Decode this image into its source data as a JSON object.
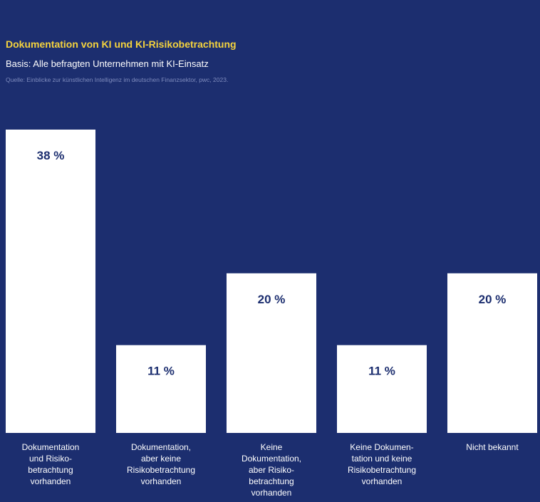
{
  "chart_data": {
    "type": "bar",
    "title": "Dokumentation von KI und KI-Risikobetrachtung",
    "subtitle": "Basis: Alle befragten Unternehmen mit KI-Einsatz",
    "source": "Quelle: Einblicke zur künstlichen Intelligenz im deutschen Finanzsektor, pwc, 2023.",
    "categories": [
      "Dokumentation\nund Risiko-\nbetrachtung\nvorhanden",
      "Dokumentation,\naber keine\nRisikobetrachtung\nvorhanden",
      "Keine\nDokumentation,\naber Risiko-\nbetrachtung\nvorhanden",
      "Keine Dokumen-\ntation und keine\nRisikobetrachtung\nvorhanden",
      "Nicht bekannt"
    ],
    "values": [
      38,
      11,
      20,
      11,
      20
    ],
    "value_labels": [
      "38 %",
      "11 %",
      "20 %",
      "11 %",
      "20 %"
    ],
    "unit": "%",
    "ylim": [
      0,
      38
    ],
    "grid": false,
    "colors": {
      "background": "#1c2e6f",
      "bar": "#ffffff",
      "value_text": "#1c2e6f",
      "title": "#f5d33d"
    }
  }
}
